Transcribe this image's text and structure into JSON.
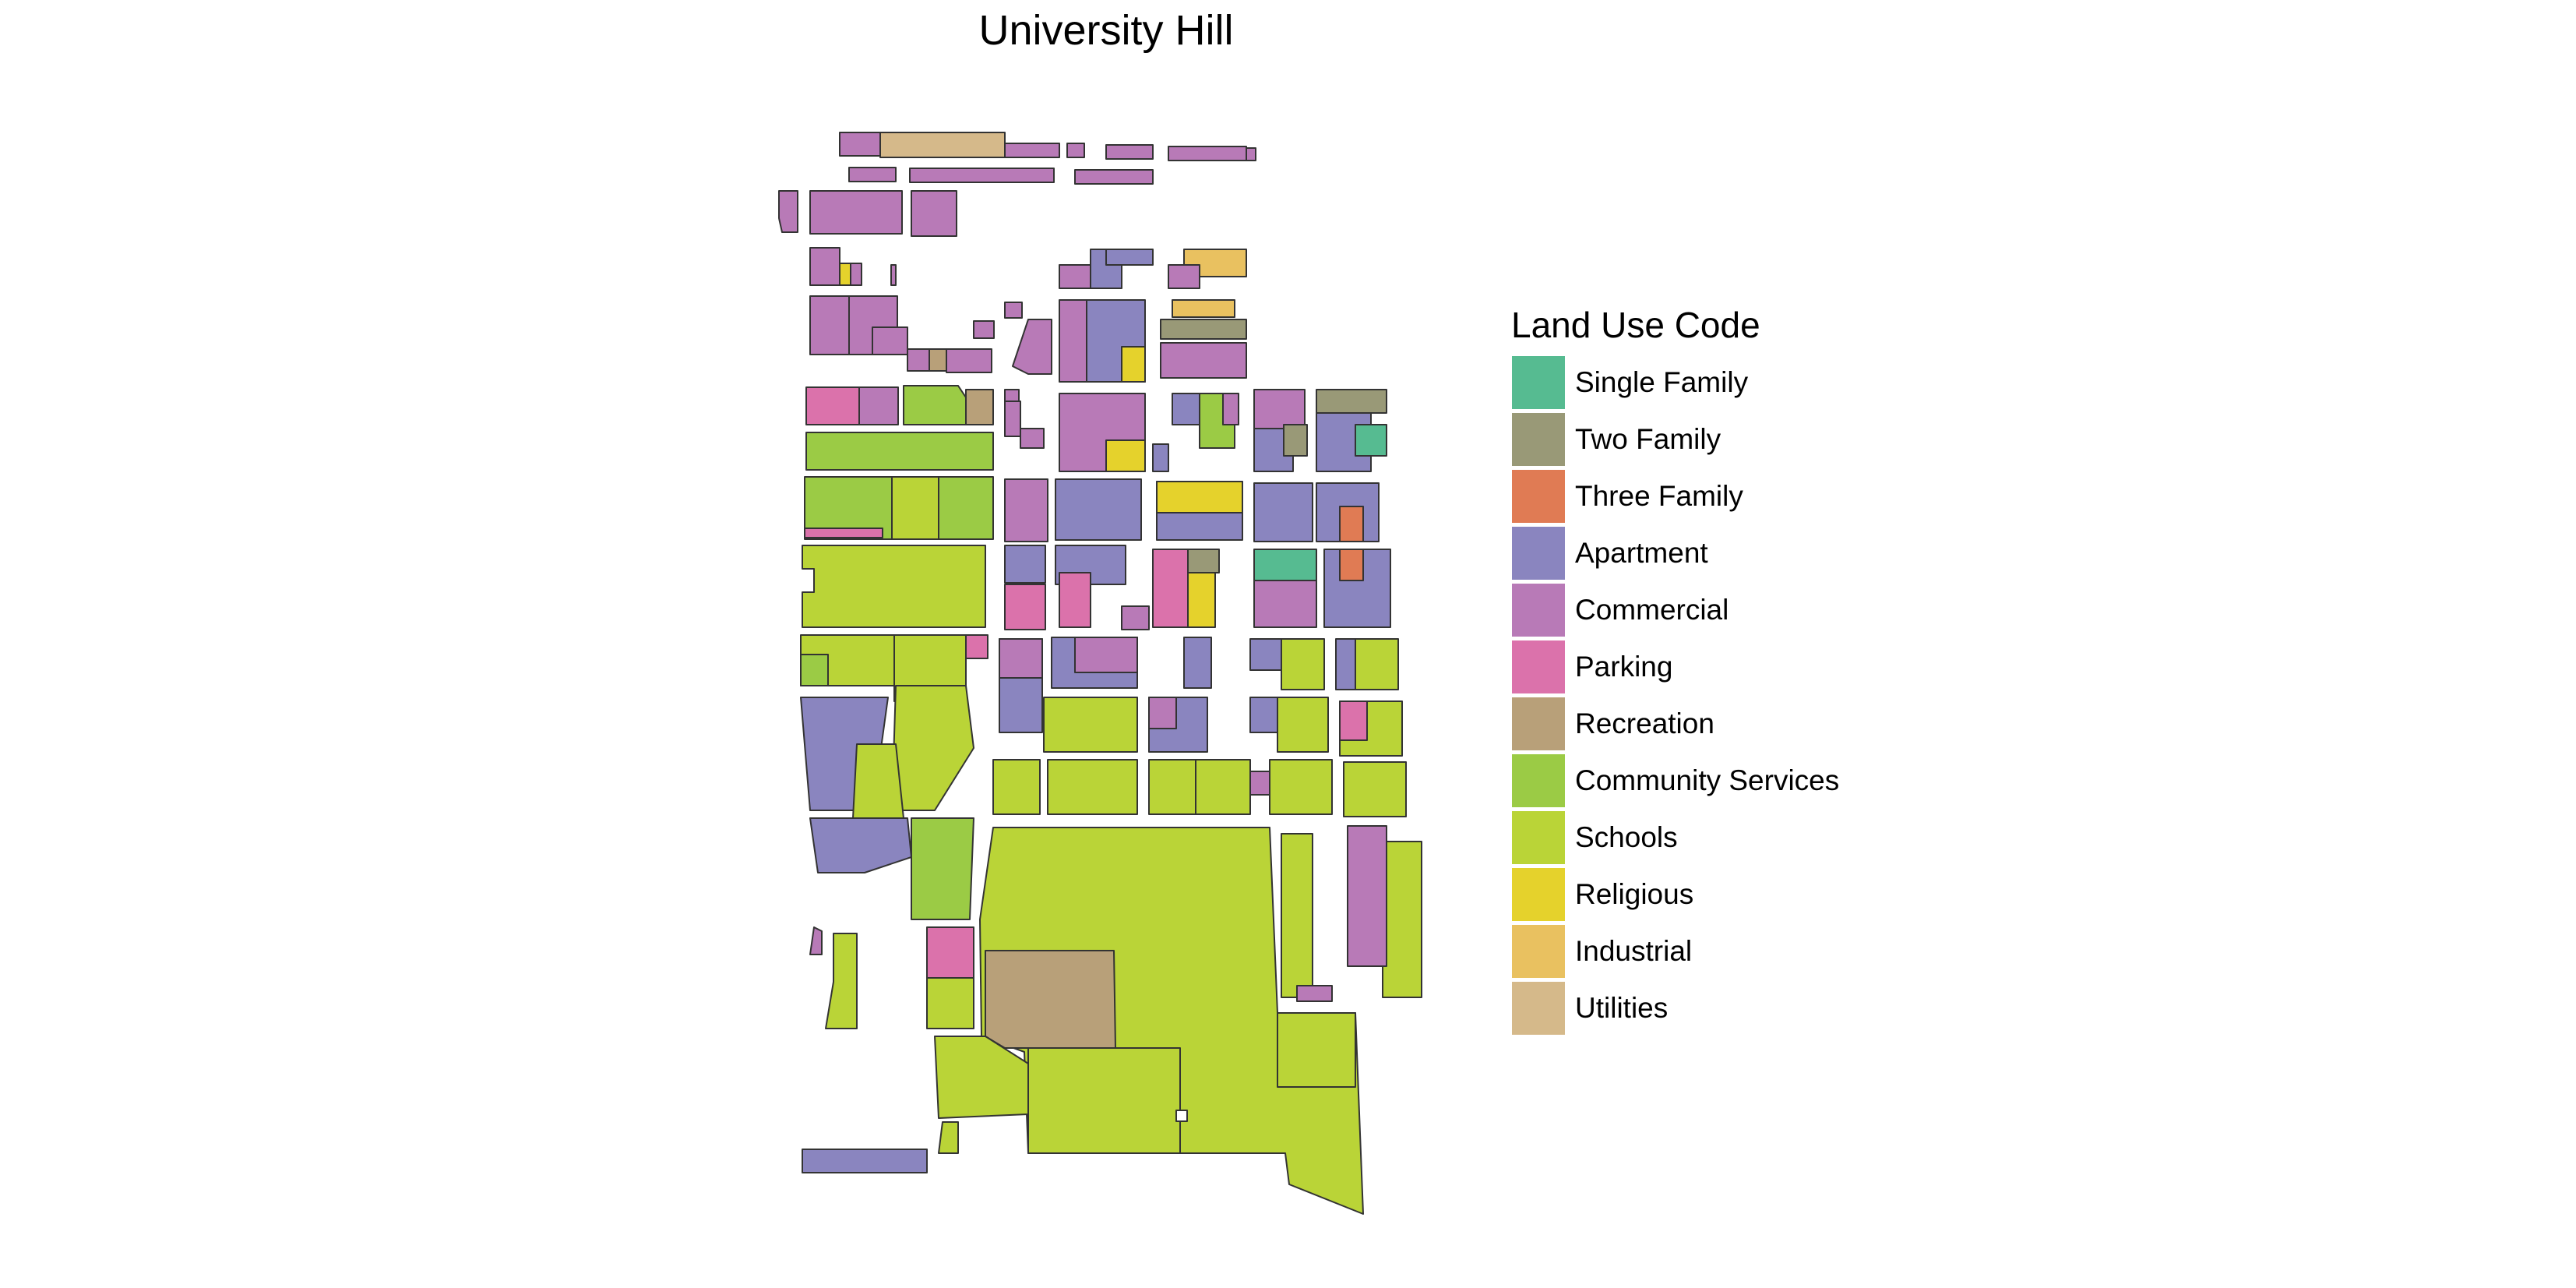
{
  "title": "University Hill",
  "legend": {
    "title": "Land Use Code",
    "items": [
      {
        "key": "single-family",
        "label": "Single Family",
        "color": "#56bb91"
      },
      {
        "key": "two-family",
        "label": "Two Family",
        "color": "#999977"
      },
      {
        "key": "three-family",
        "label": "Three Family",
        "color": "#e07b54"
      },
      {
        "key": "apartment",
        "label": "Apartment",
        "color": "#8a85bf"
      },
      {
        "key": "commercial",
        "label": "Commercial",
        "color": "#b87ab7"
      },
      {
        "key": "parking",
        "label": "Parking",
        "color": "#db72ab"
      },
      {
        "key": "recreation",
        "label": "Recreation",
        "color": "#b8a079"
      },
      {
        "key": "community-services",
        "label": "Community Services",
        "color": "#9bcb45"
      },
      {
        "key": "schools",
        "label": "Schools",
        "color": "#bad437"
      },
      {
        "key": "religious",
        "label": "Religious",
        "color": "#e5d22c"
      },
      {
        "key": "industrial",
        "label": "Industrial",
        "color": "#e9c160"
      },
      {
        "key": "utilities",
        "label": "Utilities",
        "color": "#d5b98a"
      }
    ]
  }
}
